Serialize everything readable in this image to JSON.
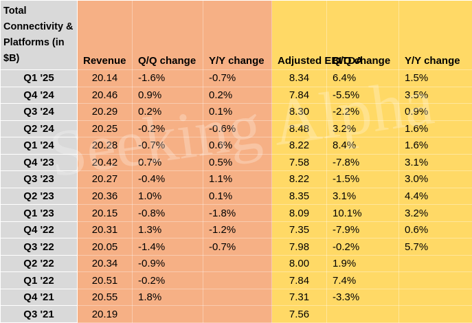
{
  "table": {
    "header": [
      "Total Connectivity & Platforms (in $B)",
      "Revenue",
      "Q/Q change",
      "Y/Y change",
      "Adjusted EBITDA",
      "Q/Q change",
      "Y/Y change"
    ],
    "rows": [
      [
        "Q1 '25",
        "20.14",
        "-1.6%",
        "-0.7%",
        "8.34",
        "6.4%",
        "1.5%"
      ],
      [
        "Q4 '24",
        "20.46",
        "0.9%",
        "0.2%",
        "7.84",
        "-5.5%",
        "3.5%"
      ],
      [
        "Q3 '24",
        "20.29",
        "0.2%",
        "0.1%",
        "8.30",
        "-2.2%",
        "0.9%"
      ],
      [
        "Q2 '24",
        "20.25",
        "-0.2%",
        "-0.6%",
        "8.48",
        "3.2%",
        "1.6%"
      ],
      [
        "Q1 '24",
        "20.28",
        "-0.7%",
        "0.6%",
        "8.22",
        "8.4%",
        "1.6%"
      ],
      [
        "Q4 '23",
        "20.42",
        "0.7%",
        "0.5%",
        "7.58",
        "-7.8%",
        "3.1%"
      ],
      [
        "Q3 '23",
        "20.27",
        "-0.4%",
        "1.1%",
        "8.22",
        "-1.5%",
        "3.0%"
      ],
      [
        "Q2 '23",
        "20.36",
        "1.0%",
        "0.1%",
        "8.35",
        "3.1%",
        "4.4%"
      ],
      [
        "Q1 '23",
        "20.15",
        "-0.8%",
        "-1.8%",
        "8.09",
        "10.1%",
        "3.2%"
      ],
      [
        "Q4 '22",
        "20.31",
        "1.3%",
        "-1.2%",
        "7.35",
        "-7.9%",
        "0.6%"
      ],
      [
        "Q3 '22",
        "20.05",
        "-1.4%",
        "-0.7%",
        "7.98",
        "-0.2%",
        "5.7%"
      ],
      [
        "Q2 '22",
        "20.34",
        "-0.9%",
        null,
        "8.00",
        "1.9%",
        null
      ],
      [
        "Q1 '22",
        "20.51",
        "-0.2%",
        null,
        "7.84",
        "7.4%",
        null
      ],
      [
        "Q4 '21",
        "20.55",
        "1.8%",
        null,
        "7.31",
        "-3.3%",
        null
      ],
      [
        "Q3 '21",
        "20.19",
        null,
        null,
        "7.56",
        null,
        null
      ]
    ]
  },
  "watermark": "Seeking Alpha"
}
